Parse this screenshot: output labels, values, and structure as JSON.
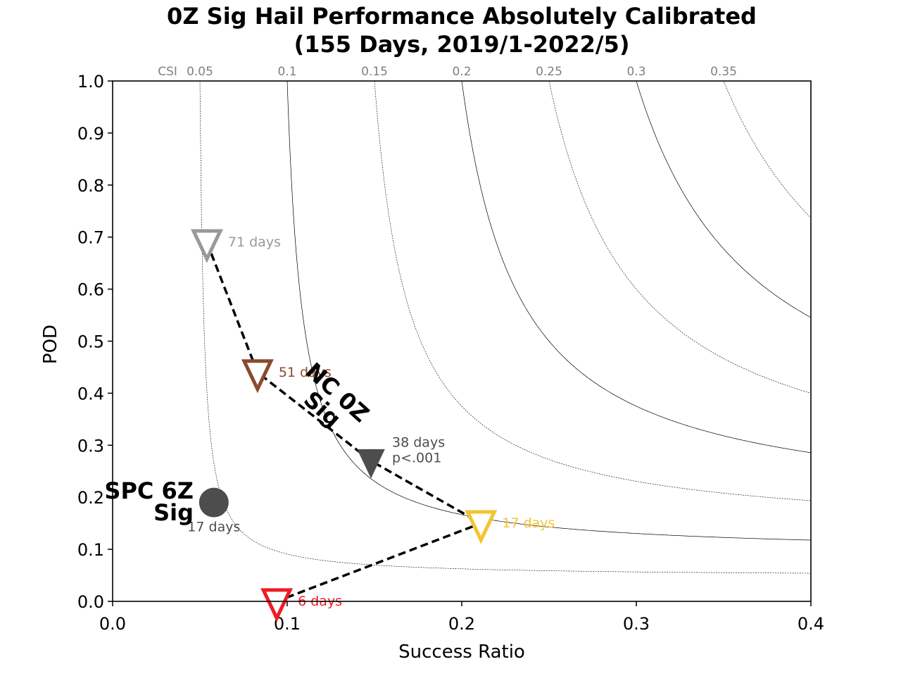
{
  "chart_data": {
    "type": "scatter",
    "title_lines": [
      "0Z Sig Hail Performance Absolutely Calibrated",
      "(155 Days, 2019/1-2022/5)"
    ],
    "xlabel": "Success Ratio",
    "ylabel": "POD",
    "xlim": [
      0.0,
      0.4
    ],
    "ylim": [
      0.0,
      1.0
    ],
    "x_ticks": [
      0.0,
      0.1,
      0.2,
      0.3,
      0.4
    ],
    "x_tick_labels": [
      "0.0",
      "0.1",
      "0.2",
      "0.3",
      "0.4"
    ],
    "y_ticks": [
      0.0,
      0.1,
      0.2,
      0.3,
      0.4,
      0.5,
      0.6,
      0.7,
      0.8,
      0.9,
      1.0
    ],
    "y_tick_labels": [
      "0.0",
      "0.1",
      "0.2",
      "0.3",
      "0.4",
      "0.5",
      "0.6",
      "0.7",
      "0.8",
      "0.9",
      "1.0"
    ],
    "csi_title": "CSI",
    "csi_contours": [
      {
        "value": 0.05,
        "label": "0.05",
        "style": "dashed"
      },
      {
        "value": 0.1,
        "label": "0.1",
        "style": "solid"
      },
      {
        "value": 0.15,
        "label": "0.15",
        "style": "dashed"
      },
      {
        "value": 0.2,
        "label": "0.2",
        "style": "solid"
      },
      {
        "value": 0.25,
        "label": "0.25",
        "style": "dashed"
      },
      {
        "value": 0.3,
        "label": "0.3",
        "style": "solid"
      },
      {
        "value": 0.35,
        "label": "0.35",
        "style": "dashed"
      }
    ],
    "nc_series": {
      "name": "NC 0Z Sig",
      "name_lines": [
        "NC 0Z",
        "Sig"
      ],
      "points": [
        {
          "sr": 0.054,
          "pod": 0.69,
          "label": "71 days",
          "color": "#999999",
          "filled": false
        },
        {
          "sr": 0.083,
          "pod": 0.44,
          "label": "51 days",
          "color": "#8b4a2b",
          "filled": false
        },
        {
          "sr": 0.148,
          "pod": 0.27,
          "label": "38 days",
          "label2": "p<.001",
          "color": "#4d4d4d",
          "filled": true
        },
        {
          "sr": 0.211,
          "pod": 0.15,
          "label": "17 days",
          "color": "#f4c430",
          "filled": false
        },
        {
          "sr": 0.094,
          "pod": 0.0,
          "label": "6 days",
          "color": "#ee1c25",
          "filled": false
        }
      ]
    },
    "spc_point": {
      "name": "SPC 6Z Sig",
      "name_lines": [
        "SPC 6Z",
        "Sig"
      ],
      "sr": 0.058,
      "pod": 0.19,
      "label": "17 days",
      "color": "#4d4d4d"
    }
  }
}
